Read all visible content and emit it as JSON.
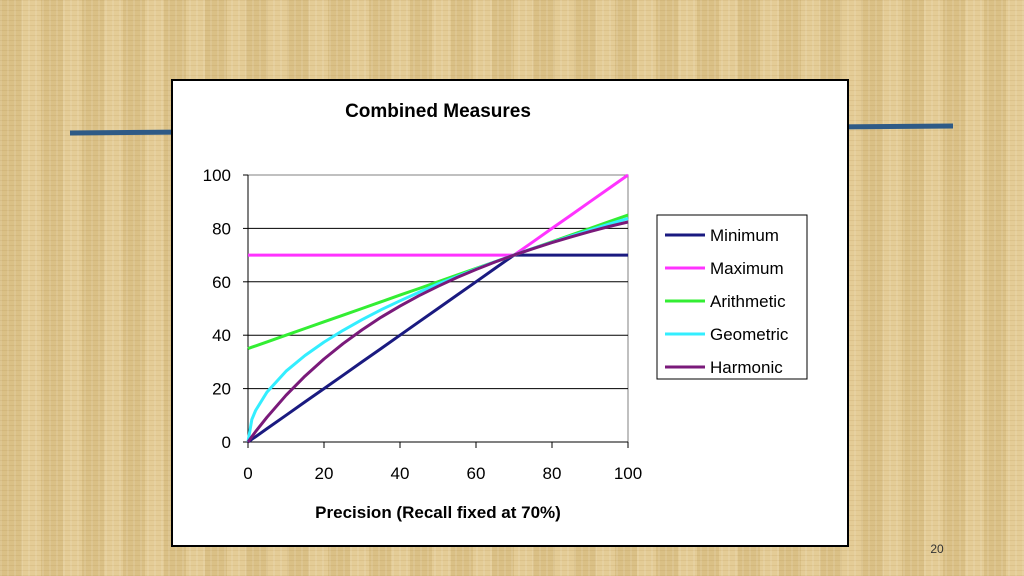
{
  "slide": {
    "page_number": "20",
    "accent_line_color": "#2e5a86"
  },
  "chart_data": {
    "type": "line",
    "title": "Combined Measures",
    "xlabel": "Precision (Recall fixed at 70%)",
    "ylabel": "",
    "xlim": [
      0,
      100
    ],
    "ylim": [
      0,
      100
    ],
    "x_ticks": [
      "0",
      "20",
      "40",
      "60",
      "80",
      "100"
    ],
    "y_ticks": [
      "0",
      "20",
      "40",
      "60",
      "80",
      "100"
    ],
    "grid": "horizontal",
    "legend_position": "right",
    "recall": 70,
    "x": [
      0,
      1,
      2,
      5,
      10,
      15,
      20,
      25,
      30,
      35,
      40,
      45,
      50,
      55,
      60,
      65,
      70,
      75,
      80,
      85,
      90,
      95,
      100
    ],
    "series": [
      {
        "name": "Minimum",
        "color": "#1a1a80",
        "values": [
          0,
          1,
          2,
          5,
          10,
          15,
          20,
          25,
          30,
          35,
          40,
          45,
          50,
          55,
          60,
          65,
          70,
          70,
          70,
          70,
          70,
          70,
          70
        ]
      },
      {
        "name": "Maximum",
        "color": "#ff33ff",
        "values": [
          70,
          70,
          70,
          70,
          70,
          70,
          70,
          70,
          70,
          70,
          70,
          70,
          70,
          70,
          70,
          70,
          70,
          75,
          80,
          85,
          90,
          95,
          100
        ]
      },
      {
        "name": "Arithmetic",
        "color": "#33ee33",
        "values": [
          35,
          35.5,
          36,
          37.5,
          40,
          42.5,
          45,
          47.5,
          50,
          52.5,
          55,
          57.5,
          60,
          62.5,
          65,
          67.5,
          70,
          72.5,
          75,
          77.5,
          80,
          82.5,
          85
        ]
      },
      {
        "name": "Geometric",
        "color": "#33eeff",
        "values": [
          0,
          8.4,
          11.8,
          18.7,
          26.5,
          32.4,
          37.4,
          41.8,
          45.8,
          49.5,
          52.9,
          56.1,
          59.2,
          62.0,
          64.8,
          67.5,
          70,
          72.5,
          74.8,
          77.1,
          79.4,
          81.6,
          83.7
        ]
      },
      {
        "name": "Harmonic",
        "color": "#7a1a7a",
        "values": [
          0,
          2.0,
          3.9,
          9.3,
          17.5,
          24.7,
          31.1,
          36.8,
          42.0,
          46.7,
          50.9,
          54.8,
          58.3,
          61.6,
          64.6,
          67.4,
          70,
          72.4,
          74.7,
          76.8,
          78.8,
          80.7,
          82.4
        ]
      }
    ]
  }
}
